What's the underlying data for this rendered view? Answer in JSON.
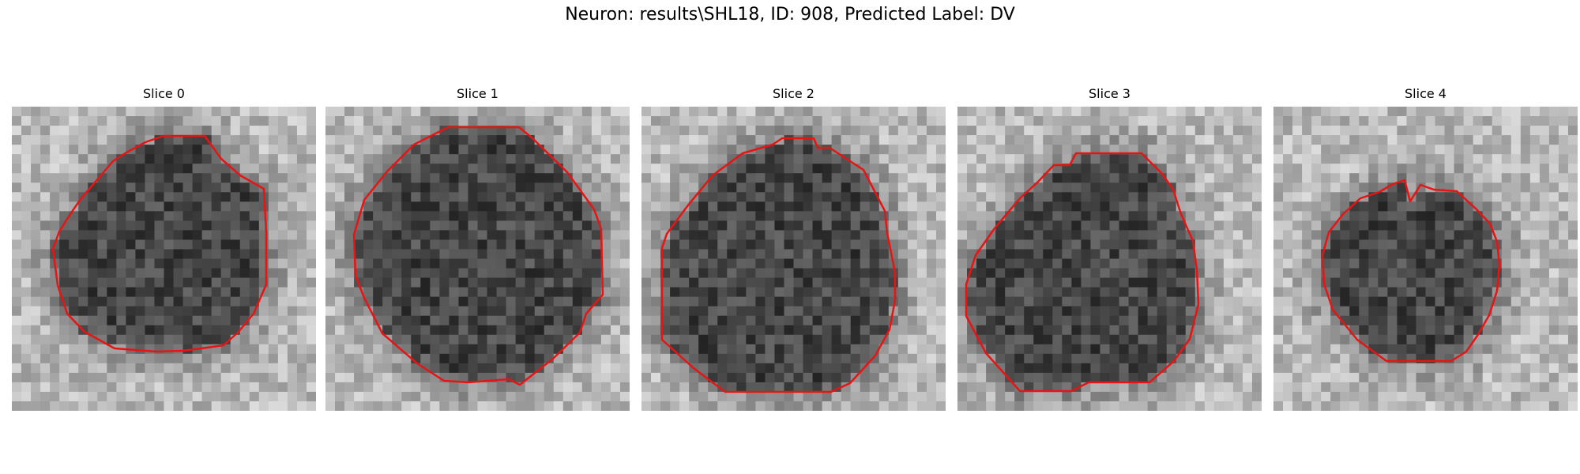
{
  "figure": {
    "title": "Neuron: results\\SHL18, ID: 908, Predicted Label: DV"
  },
  "panels": [
    {
      "title": "Slice 0"
    },
    {
      "title": "Slice 1"
    },
    {
      "title": "Slice 2"
    },
    {
      "title": "Slice 3"
    },
    {
      "title": "Slice 4"
    }
  ],
  "colors": {
    "contour": "#e81414",
    "background": "#ffffff"
  }
}
